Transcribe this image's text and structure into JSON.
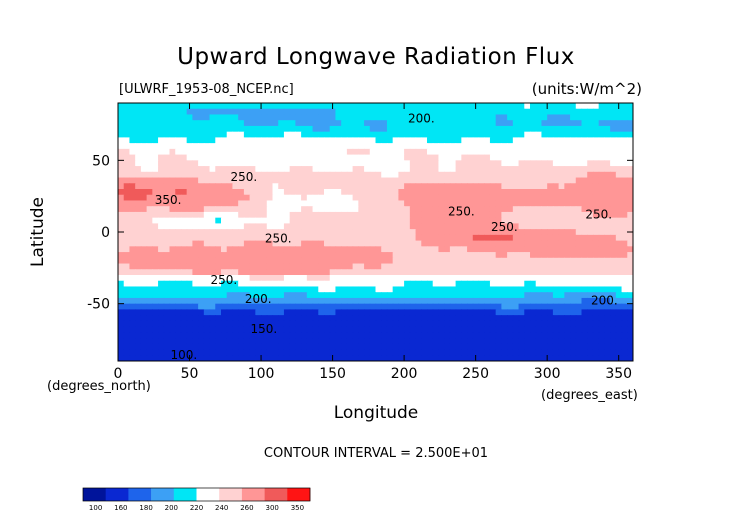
{
  "chart_data": {
    "type": "heatmap",
    "title": "Upward Longwave Radiation Flux",
    "dataset": "[ULWRF_1953-08_NCEP.nc]",
    "units": "(units:W/m^2)",
    "xlabel": "Longitude",
    "ylabel": "Latitude",
    "x_unit_note": "(degrees_east)",
    "y_unit_note": "(degrees_north)",
    "xlim": [
      0,
      360
    ],
    "ylim": [
      -90,
      90
    ],
    "x_ticks": [
      "0",
      "50",
      "100",
      "150",
      "200",
      "250",
      "300",
      "350"
    ],
    "y_ticks": [
      "-50",
      "0",
      "50"
    ],
    "contour_interval_text": "CONTOUR INTERVAL = 2.500E+01",
    "contour_labels": [
      {
        "text": "200.",
        "lon": 212,
        "lat": 79
      },
      {
        "text": "250.",
        "lon": 88,
        "lat": 38
      },
      {
        "text": "350.",
        "lon": 35,
        "lat": 22
      },
      {
        "text": "250.",
        "lon": 240,
        "lat": 14
      },
      {
        "text": "250.",
        "lon": 270,
        "lat": 3
      },
      {
        "text": "250.",
        "lon": 336,
        "lat": 12
      },
      {
        "text": "250.",
        "lon": 112,
        "lat": -5
      },
      {
        "text": "250.",
        "lon": 74,
        "lat": -34
      },
      {
        "text": "200.",
        "lon": 98,
        "lat": -47
      },
      {
        "text": "200.",
        "lon": 340,
        "lat": -48
      },
      {
        "text": "150.",
        "lon": 102,
        "lat": -68
      },
      {
        "text": "100.",
        "lon": 46,
        "lat": -86
      }
    ],
    "colorbar": {
      "ticks": [
        "100",
        "160",
        "180",
        "200",
        "220",
        "240",
        "260",
        "300",
        "350"
      ],
      "colors": [
        "#00149b",
        "#0a28d2",
        "#1e64eb",
        "#3ca0f5",
        "#00e6f5",
        "#ffffff",
        "#ffd2d2",
        "#ff9696",
        "#f05a5a",
        "#ff1414"
      ]
    },
    "grid": false,
    "legend_placement": "bottom-left colorbar"
  }
}
